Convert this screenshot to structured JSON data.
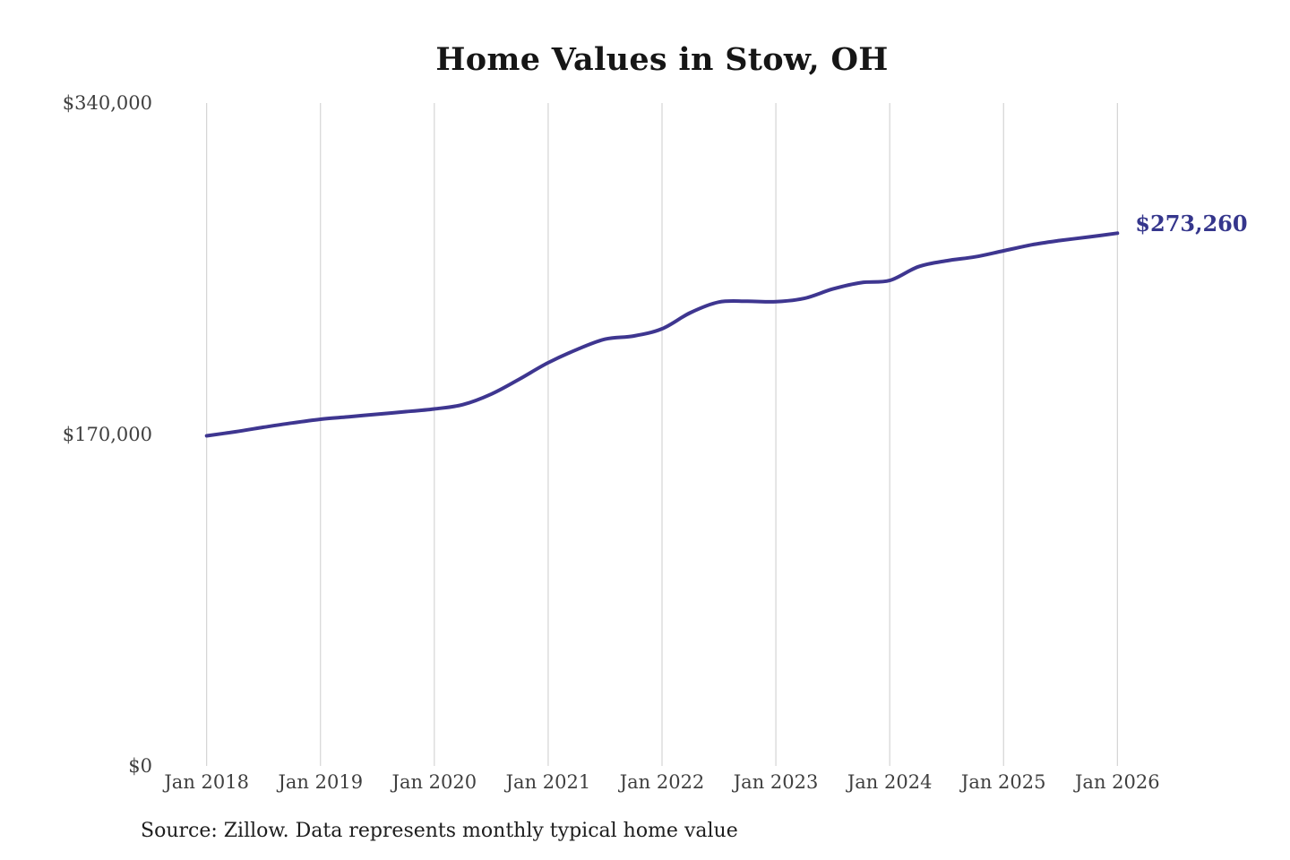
{
  "figure": {
    "source_note": "Source: Zillow. Data represents monthly typical home value"
  },
  "chart_data": {
    "type": "line",
    "title": "Home Values in Stow, OH",
    "xlabel": "",
    "ylabel": "",
    "grid": "vertical-only",
    "legend": "none",
    "xlim": [
      2018,
      2026
    ],
    "ylim": [
      0,
      340000
    ],
    "x_tick_labels": [
      "Jan 2018",
      "Jan 2019",
      "Jan 2020",
      "Jan 2021",
      "Jan 2022",
      "Jan 2023",
      "Jan 2024",
      "Jan 2025",
      "Jan 2026"
    ],
    "x_tick_values": [
      2018,
      2019,
      2020,
      2021,
      2022,
      2023,
      2024,
      2025,
      2026
    ],
    "y_tick_labels": [
      "$0",
      "$170,000",
      "$340,000"
    ],
    "y_tick_values": [
      0,
      170000,
      340000
    ],
    "line_color": "#3e3690",
    "grid_color": "#cccccc",
    "tick_color": "#3f3f3f",
    "end_label": {
      "text": "$273,260",
      "value": 273260
    },
    "series": [
      {
        "name": "Monthly typical home value",
        "x": [
          2018.0,
          2018.25,
          2018.5,
          2018.75,
          2019.0,
          2019.25,
          2019.5,
          2019.75,
          2020.0,
          2020.25,
          2020.5,
          2020.75,
          2021.0,
          2021.25,
          2021.5,
          2021.75,
          2022.0,
          2022.25,
          2022.5,
          2022.75,
          2023.0,
          2023.25,
          2023.5,
          2023.75,
          2024.0,
          2024.25,
          2024.5,
          2024.75,
          2025.0,
          2025.25,
          2025.5,
          2025.75,
          2026.0
        ],
        "values": [
          169300,
          171400,
          173700,
          175900,
          177800,
          179100,
          180400,
          181700,
          183100,
          185300,
          190700,
          198500,
          206800,
          213500,
          218900,
          220500,
          224200,
          232500,
          237900,
          238300,
          238100,
          239800,
          244600,
          247900,
          249000,
          256000,
          259100,
          261100,
          264200,
          267300,
          269500,
          271300,
          273260
        ]
      }
    ]
  }
}
